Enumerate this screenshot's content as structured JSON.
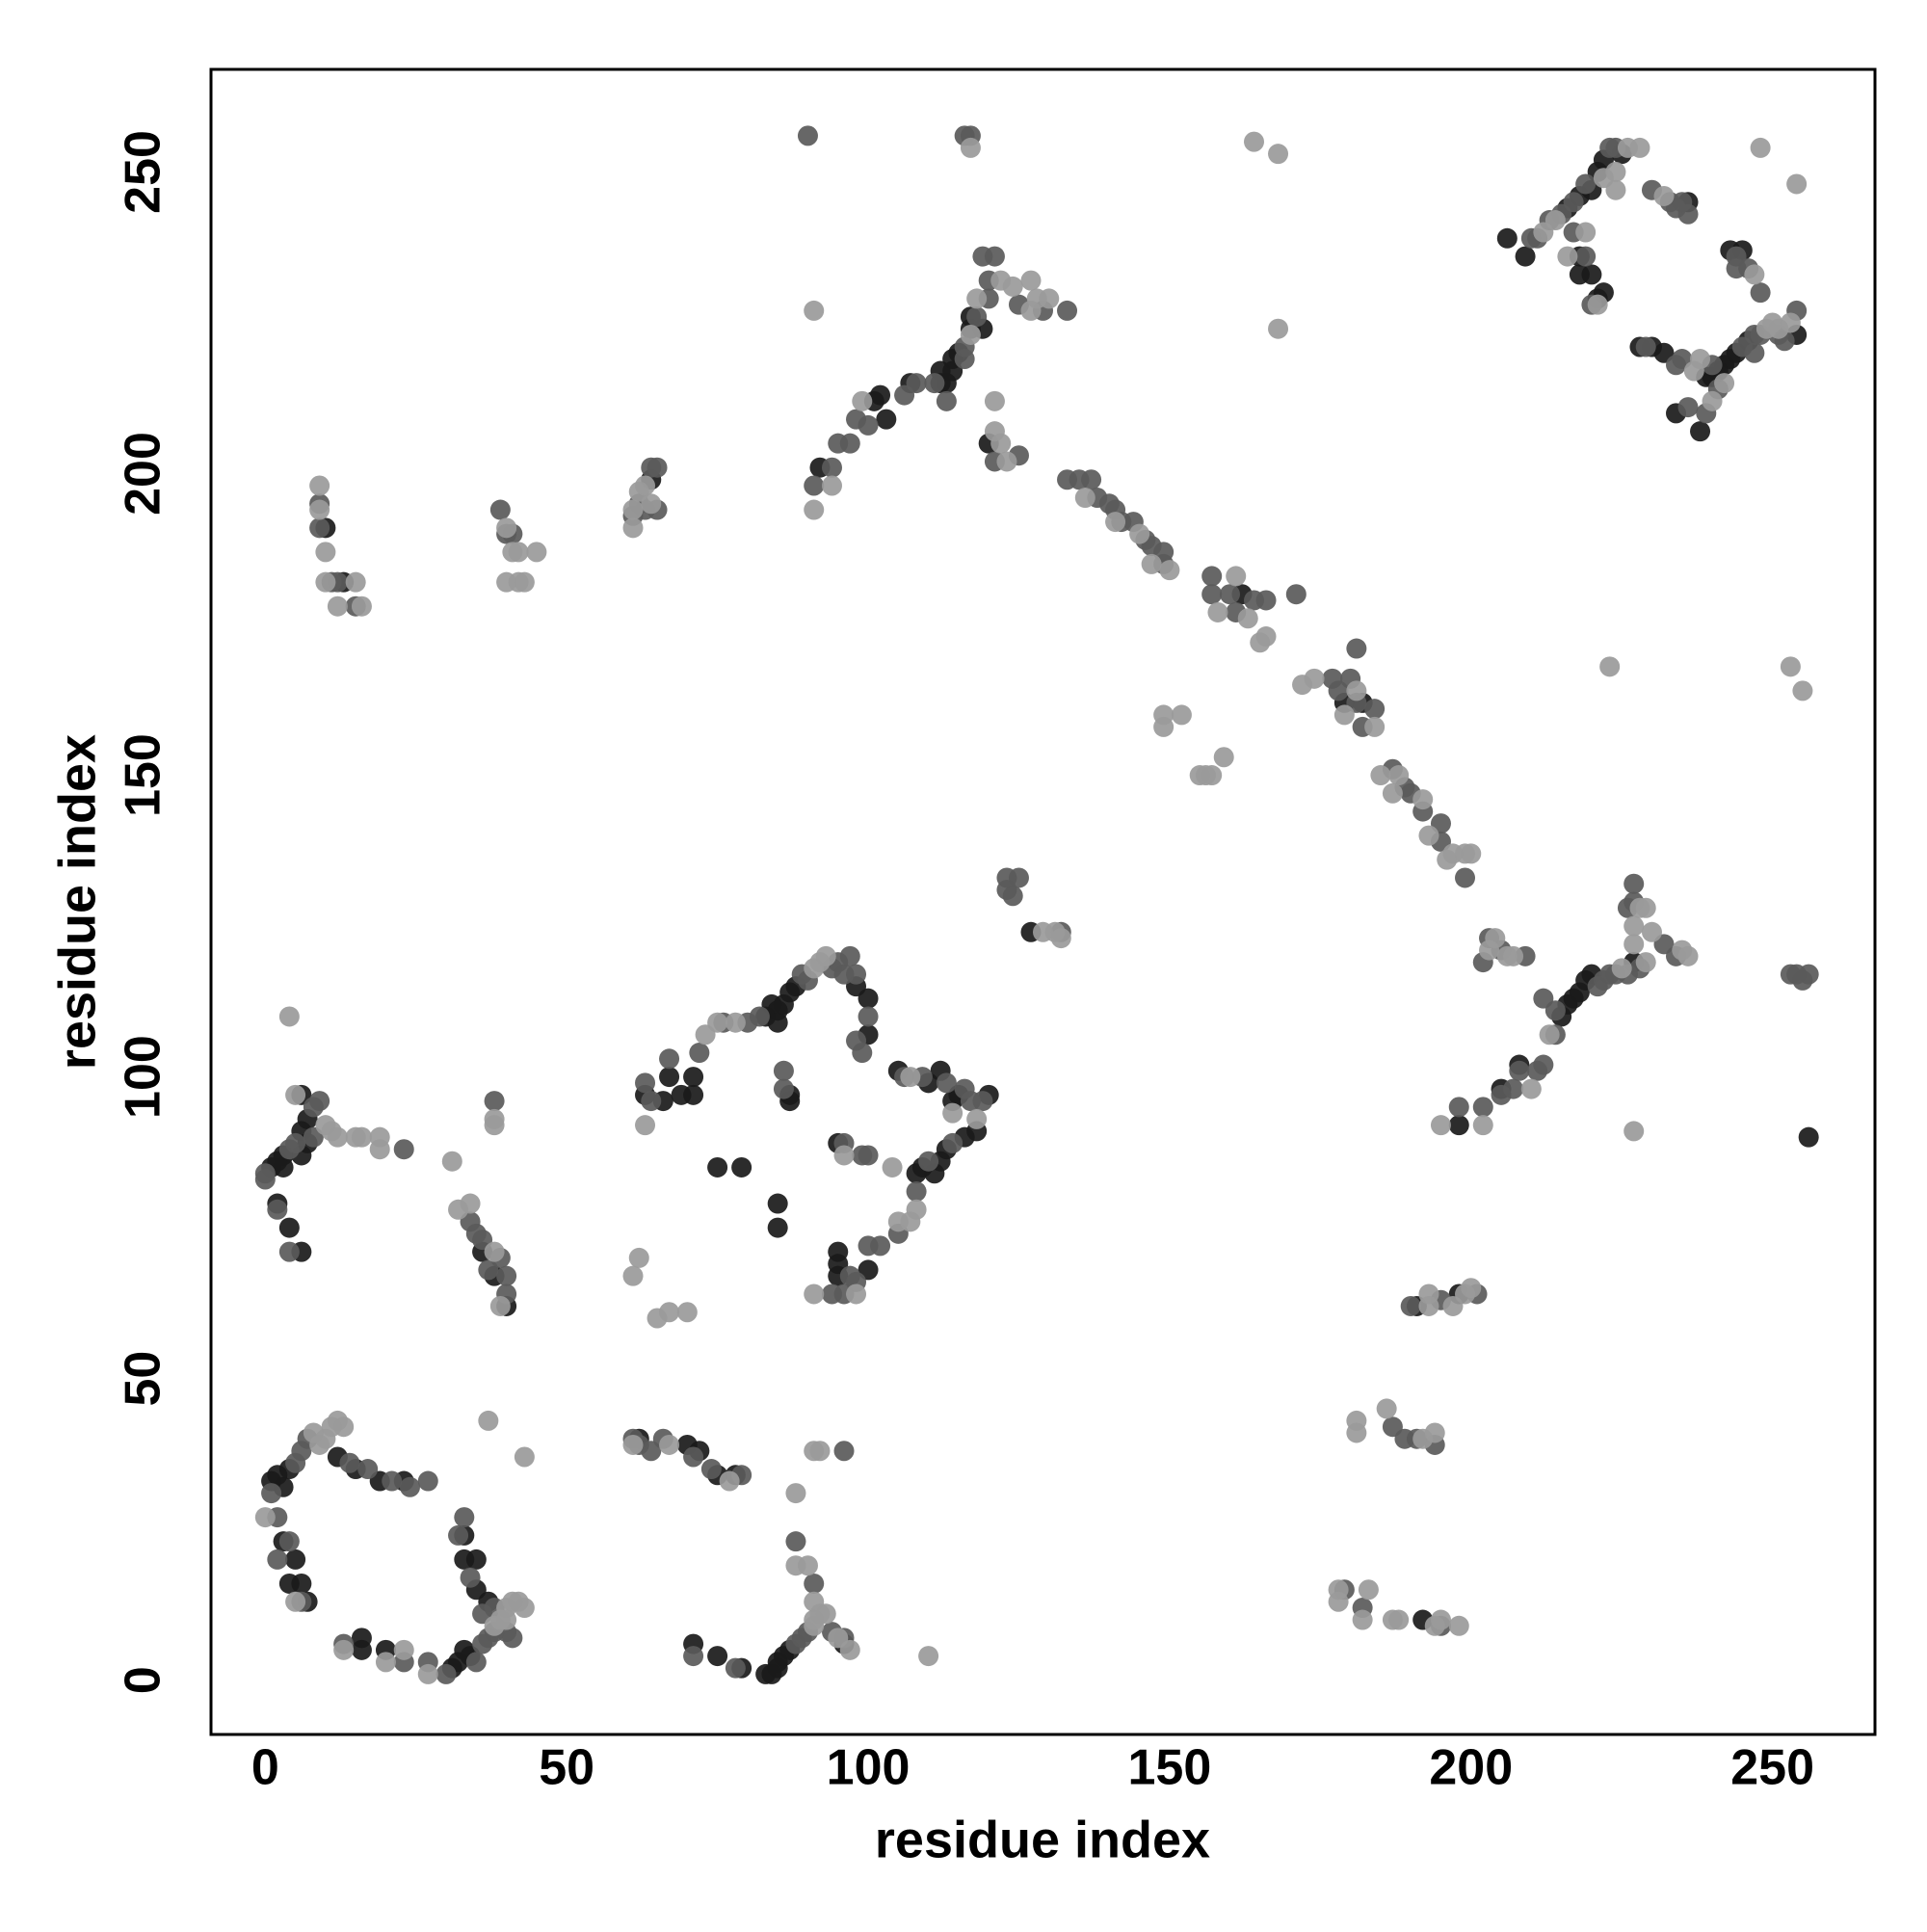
{
  "chart_data": {
    "type": "scatter",
    "x_label": "residue index",
    "y_label": "residue index",
    "xlim": [
      -9,
      267
    ],
    "ylim": [
      -9,
      267
    ],
    "xticks": [
      0,
      50,
      100,
      150,
      200,
      250
    ],
    "yticks": [
      0,
      50,
      100,
      150,
      200,
      250
    ],
    "grid": false,
    "series": [
      {
        "color": "#1a1a1a",
        "x": [
          1,
          2,
          3,
          4,
          12,
          15,
          19,
          23,
          3,
          5,
          4,
          6,
          7,
          16,
          16,
          20,
          31,
          32,
          33,
          34,
          33,
          33,
          35,
          35,
          37,
          62,
          70,
          72,
          75,
          78,
          71,
          75,
          79,
          83,
          84,
          85,
          85,
          86,
          87,
          96,
          1,
          2,
          3,
          3,
          6,
          6,
          7,
          2,
          4,
          6,
          6,
          7,
          36,
          38,
          40,
          63,
          66,
          67,
          69,
          71,
          71,
          83,
          84,
          85,
          85,
          86,
          87,
          88,
          98,
          100,
          100,
          87,
          87,
          75,
          79,
          85,
          85,
          95,
          105,
          110,
          112,
          114,
          115,
          120,
          118,
          116,
          113,
          112,
          111,
          109,
          108,
          100,
          95,
          95,
          95,
          192,
          191,
          198,
          198,
          205,
          208,
          215,
          216,
          217,
          218,
          219,
          220,
          227,
          256,
          162,
          179,
          182,
          127,
          64,
          92,
          101,
          102,
          103,
          107,
          112,
          113,
          114,
          115,
          117,
          120,
          112,
          114,
          119,
          117,
          10,
          13,
          206,
          209,
          216,
          218,
          220,
          221,
          222,
          225,
          218,
          218,
          220,
          221,
          222,
          228,
          230,
          232,
          239,
          240,
          241,
          242,
          243,
          244,
          246,
          254,
          234,
          238,
          245,
          243,
          236
        ],
        "values": [
          33,
          34,
          32,
          35,
          37,
          35,
          33,
          33,
          23,
          20,
          16,
          16,
          13,
          7,
          5,
          5,
          2,
          3,
          5,
          4,
          24,
          20,
          20,
          15,
          13,
          40,
          39,
          38,
          34,
          34,
          6,
          4,
          2,
          1,
          1,
          2,
          3,
          4,
          5,
          6,
          85,
          86,
          87,
          85,
          91,
          97,
          93,
          79,
          75,
          71,
          87,
          89,
          71,
          67,
          62,
          97,
          96,
          100,
          97,
          97,
          100,
          110,
          112,
          111,
          109,
          112,
          114,
          115,
          115,
          113,
          107,
          97,
          96,
          85,
          85,
          79,
          75,
          89,
          101,
          99,
          101,
          96,
          97,
          97,
          91,
          90,
          88,
          86,
          84,
          85,
          84,
          68,
          69,
          71,
          67,
          10,
          62,
          64,
          92,
          98,
          102,
          110,
          112,
          113,
          114,
          116,
          117,
          119,
          90,
          180,
          162,
          162,
          124,
          199,
          201,
          212,
          213,
          209,
          215,
          217,
          215,
          219,
          220,
          226,
          205,
          215,
          217,
          224,
          224,
          191,
          182,
          239,
          236,
          244,
          246,
          247,
          250,
          252,
          253,
          236,
          233,
          233,
          229,
          230,
          221,
          221,
          220,
          216,
          216,
          217,
          218,
          219,
          220,
          222,
          223,
          210,
          207,
          237,
          237,
          245
        ]
      },
      {
        "color": "#5a5a5a",
        "x": [
          1,
          5,
          6,
          7,
          14,
          17,
          21,
          24,
          27,
          2,
          4,
          2,
          6,
          13,
          23,
          27,
          30,
          35,
          36,
          37,
          38,
          33,
          32,
          34,
          36,
          38,
          40,
          41,
          61,
          62,
          64,
          66,
          71,
          74,
          79,
          96,
          71,
          78,
          88,
          89,
          90,
          94,
          96,
          91,
          88,
          0,
          0,
          4,
          5,
          8,
          9,
          23,
          2,
          4,
          8,
          34,
          35,
          36,
          37,
          39,
          40,
          40,
          38,
          63,
          64,
          67,
          72,
          76,
          80,
          82,
          89,
          90,
          94,
          95,
          96,
          97,
          98,
          100,
          99,
          98,
          86,
          86,
          96,
          99,
          100,
          106,
          109,
          113,
          116,
          117,
          119,
          114,
          110,
          108,
          105,
          102,
          100,
          97,
          96,
          94,
          98,
          179,
          182,
          195,
          187,
          189,
          191,
          194,
          190,
          195,
          201,
          198,
          202,
          205,
          208,
          207,
          211,
          212,
          214,
          221,
          222,
          223,
          224,
          226,
          228,
          227,
          227,
          226,
          232,
          234,
          214,
          212,
          253,
          254,
          255,
          256,
          133,
          135,
          137,
          138,
          140,
          141,
          142,
          144,
          146,
          147,
          149,
          149,
          157,
          157,
          160,
          161,
          164,
          166,
          171,
          177,
          178,
          180,
          181,
          181,
          182,
          184,
          187,
          189,
          190,
          192,
          195,
          195,
          199,
          123,
          123,
          124,
          125,
          132,
          202,
          203,
          205,
          209,
          61,
          62,
          64,
          65,
          63,
          65,
          91,
          94,
          95,
          97,
          98,
          100,
          106,
          108,
          111,
          116,
          116,
          118,
          120,
          120,
          119,
          121,
          125,
          129,
          133,
          121,
          125,
          113,
          90,
          116,
          117,
          9,
          9,
          11,
          12,
          15,
          39,
          40,
          41,
          210,
          211,
          213,
          215,
          217,
          219,
          223,
          224,
          217,
          219,
          220,
          229,
          234,
          235,
          240,
          245,
          247,
          248,
          251,
          252,
          254,
          247,
          236,
          239,
          241,
          244,
          246,
          248,
          244,
          230,
          233,
          234,
          235,
          236
        ],
        "values": [
          31,
          36,
          38,
          40,
          36,
          35,
          33,
          32,
          33,
          27,
          23,
          20,
          13,
          6,
          3,
          3,
          1,
          3,
          6,
          7,
          8,
          27,
          24,
          17,
          11,
          12,
          8,
          7,
          40,
          39,
          38,
          40,
          37,
          35,
          34,
          38,
          4,
          2,
          6,
          7,
          8,
          8,
          7,
          16,
          23,
          84,
          83,
          88,
          89,
          95,
          96,
          88,
          78,
          71,
          90,
          76,
          74,
          73,
          68,
          70,
          64,
          67,
          96,
          99,
          96,
          103,
          104,
          109,
          109,
          110,
          117,
          116,
          118,
          119,
          117,
          120,
          117,
          110,
          104,
          106,
          101,
          98,
          89,
          87,
          87,
          100,
          100,
          99,
          98,
          96,
          96,
          89,
          86,
          81,
          74,
          72,
          72,
          67,
          64,
          64,
          66,
          15,
          12,
          9,
          42,
          40,
          40,
          39,
          62,
          63,
          64,
          95,
          95,
          97,
          101,
          98,
          101,
          102,
          107,
          115,
          116,
          117,
          117,
          117,
          118,
          129,
          132,
          128,
          122,
          120,
          111,
          113,
          117,
          117,
          116,
          117,
          199,
          199,
          199,
          196,
          195,
          194,
          192,
          192,
          189,
          188,
          187,
          185,
          183,
          180,
          180,
          177,
          179,
          179,
          180,
          166,
          164,
          166,
          171,
          162,
          158,
          161,
          151,
          148,
          147,
          144,
          142,
          139,
          133,
          131,
          133,
          130,
          133,
          124,
          119,
          123,
          121,
          120,
          193,
          195,
          201,
          201,
          194,
          194,
          198,
          201,
          205,
          205,
          209,
          208,
          213,
          215,
          215,
          219,
          221,
          226,
          229,
          232,
          236,
          236,
          228,
          227,
          227,
          202,
          203,
          212,
          256,
          256,
          256,
          195,
          191,
          182,
          182,
          178,
          194,
          190,
          190,
          239,
          239,
          242,
          243,
          245,
          248,
          254,
          254,
          240,
          236,
          228,
          221,
          218,
          219,
          218,
          221,
          223,
          223,
          223,
          222,
          227,
          220,
          211,
          210,
          214,
          236,
          234,
          230,
          234,
          247,
          245,
          244,
          245,
          243
        ]
      },
      {
        "color": "#9a9a9a",
        "x": [
          0,
          8,
          9,
          10,
          11,
          12,
          13,
          5,
          13,
          20,
          23,
          27,
          39,
          40,
          41,
          42,
          43,
          38,
          40,
          37,
          43,
          61,
          67,
          77,
          88,
          91,
          92,
          91,
          91,
          92,
          93,
          95,
          97,
          90,
          91,
          88,
          110,
          10,
          11,
          12,
          5,
          4,
          15,
          16,
          19,
          19,
          31,
          32,
          34,
          38,
          39,
          38,
          38,
          63,
          73,
          75,
          78,
          91,
          92,
          93,
          96,
          104,
          107,
          114,
          118,
          108,
          107,
          105,
          98,
          91,
          62,
          61,
          65,
          67,
          70,
          178,
          178,
          183,
          182,
          187,
          188,
          194,
          195,
          198,
          181,
          181,
          186,
          192,
          194,
          193,
          193,
          197,
          199,
          200,
          195,
          202,
          210,
          213,
          225,
          229,
          227,
          227,
          228,
          229,
          230,
          235,
          236,
          227,
          253,
          255,
          223,
          136,
          141,
          145,
          147,
          150,
          158,
          161,
          163,
          165,
          166,
          172,
          174,
          179,
          181,
          184,
          185,
          187,
          188,
          192,
          193,
          196,
          197,
          199,
          200,
          149,
          149,
          152,
          155,
          157,
          159,
          156,
          129,
          131,
          132,
          203,
          206,
          207,
          204,
          61,
          62,
          63,
          64,
          61,
          91,
          94,
          99,
          117,
          118,
          122,
          124,
          127,
          127,
          128,
          130,
          121,
          121,
          122,
          123,
          91,
          117,
          164,
          168,
          168,
          9,
          9,
          10,
          10,
          12,
          15,
          16,
          40,
          41,
          42,
          40,
          42,
          43,
          45,
          212,
          214,
          226,
          228,
          224,
          224,
          222,
          216,
          219,
          221,
          237,
          238,
          249,
          250,
          251,
          253,
          240,
          242,
          247,
          232,
          254,
          248
        ],
        "values": [
          27,
          41,
          39,
          40,
          42,
          43,
          42,
          13,
          5,
          3,
          5,
          1,
          10,
          12,
          13,
          13,
          12,
          9,
          10,
          43,
          37,
          39,
          39,
          33,
          31,
          38,
          38,
          9,
          10,
          11,
          11,
          7,
          5,
          19,
          13,
          19,
          4,
          92,
          91,
          90,
          97,
          110,
          90,
          90,
          90,
          88,
          86,
          78,
          79,
          71,
          62,
          93,
          92,
          92,
          107,
          109,
          109,
          118,
          119,
          120,
          87,
          85,
          100,
          94,
          93,
          78,
          76,
          76,
          64,
          64,
          70,
          67,
          60,
          61,
          61,
          15,
          13,
          15,
          10,
          10,
          10,
          9,
          10,
          9,
          43,
          41,
          45,
          40,
          41,
          62,
          64,
          62,
          64,
          65,
          92,
          92,
          98,
          107,
          118,
          119,
          122,
          125,
          128,
          128,
          124,
          121,
          120,
          91,
          168,
          164,
          168,
          196,
          192,
          190,
          185,
          184,
          177,
          183,
          176,
          172,
          173,
          165,
          166,
          160,
          164,
          158,
          150,
          147,
          150,
          146,
          140,
          136,
          137,
          137,
          137,
          160,
          158,
          160,
          150,
          150,
          153,
          150,
          124,
          124,
          123,
          121,
          120,
          120,
          123,
          191,
          197,
          198,
          195,
          194,
          194,
          198,
          212,
          223,
          229,
          232,
          231,
          232,
          227,
          229,
          229,
          212,
          207,
          205,
          202,
          227,
          254,
          255,
          253,
          224,
          198,
          194,
          187,
          182,
          178,
          182,
          178,
          191,
          187,
          187,
          182,
          182,
          182,
          187,
          240,
          242,
          254,
          254,
          250,
          247,
          249,
          236,
          240,
          228,
          217,
          219,
          224,
          225,
          224,
          225,
          212,
          215,
          233,
          246,
          248,
          254
        ]
      }
    ]
  }
}
